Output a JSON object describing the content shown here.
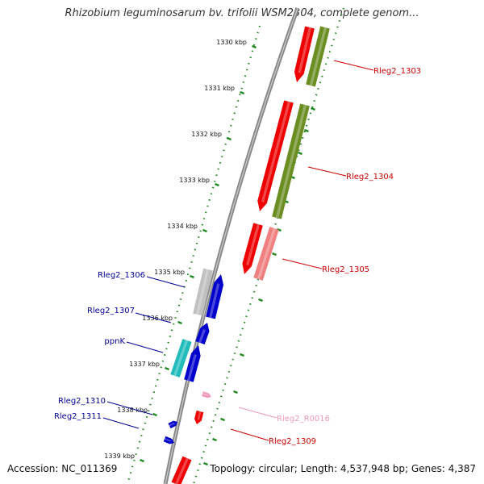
{
  "title": "Rhizobium leguminosarum bv. trifolii WSM2304, complete genom...",
  "footer": {
    "accession": "Accession: NC_011369",
    "topology": "Topology: circular; Length: 4,537,948 bp; Genes: 4,387"
  },
  "colors": {
    "backbone": "#888888",
    "dotted_track": "#228822",
    "red": "#ee0000",
    "olive": "#6b8e23",
    "pink": "#f08080",
    "light_pink": "#ee99bb",
    "gray": "#c0c0c0",
    "blue": "#0000cc",
    "cyan": "#22bbbb"
  },
  "ticks": [
    "1330 kbp",
    "1331 kbp",
    "1332 kbp",
    "1333 kbp",
    "1334 kbp",
    "1335 kbp",
    "1336 kbp",
    "1337 kbp",
    "1338 kbp",
    "1339 kbp"
  ],
  "labels": [
    {
      "text": "Rleg2_1303",
      "color": "#cc0000"
    },
    {
      "text": "Rleg2_1304",
      "color": "#cc0000"
    },
    {
      "text": "Rleg2_1305",
      "color": "#cc0000"
    },
    {
      "text": "Rleg2_1306",
      "color": "#000099"
    },
    {
      "text": "Rleg2_1307",
      "color": "#000099"
    },
    {
      "text": "ppnK",
      "color": "#000099"
    },
    {
      "text": "Rleg2_1310",
      "color": "#000099"
    },
    {
      "text": "Rleg2_1311",
      "color": "#000099"
    },
    {
      "text": "Rleg2_R0016",
      "color": "#ee99bb"
    },
    {
      "text": "Rleg2_1309",
      "color": "#cc0000"
    }
  ]
}
